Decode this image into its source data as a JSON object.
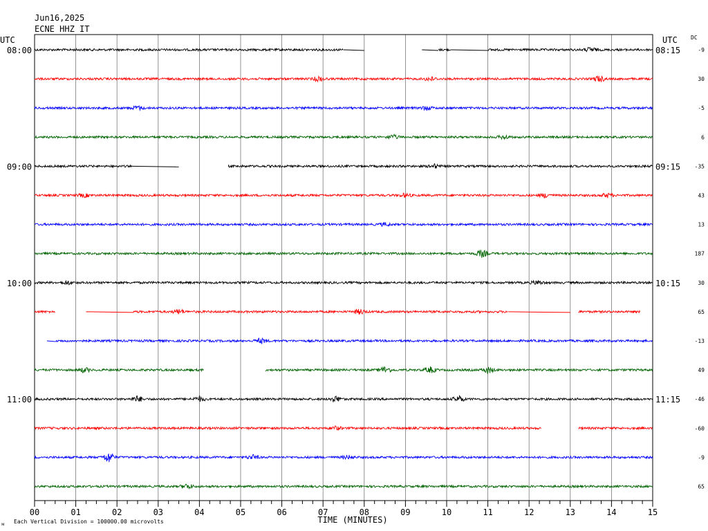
{
  "header": {
    "date": "Jun16,2025",
    "station": "ECNE HHZ IT",
    "utc_left": "UTC",
    "utc_right": "UTC",
    "dc_label": "DC"
  },
  "footer": {
    "scale_note": "Each Vertical Division = 100000.00 microvolts",
    "corner_mark": "ᴍ"
  },
  "chart_data": {
    "type": "line",
    "title": "",
    "xlabel": "TIME (MINUTES)",
    "ylabel": "",
    "x_ticks": [
      "00",
      "01",
      "02",
      "03",
      "04",
      "05",
      "06",
      "07",
      "08",
      "09",
      "10",
      "11",
      "12",
      "13",
      "14",
      "15"
    ],
    "xlim": [
      0,
      15
    ],
    "grid": "vertical lines every minute",
    "colors": [
      "#000000",
      "#ff0000",
      "#0000ff",
      "#006400"
    ],
    "left_time_labels": [
      {
        "row": 0,
        "text": "08:00"
      },
      {
        "row": 4,
        "text": "09:00"
      },
      {
        "row": 8,
        "text": "10:00"
      },
      {
        "row": 12,
        "text": "11:00"
      }
    ],
    "right_time_labels": [
      {
        "row": 0,
        "text": "08:15"
      },
      {
        "row": 4,
        "text": "09:15"
      },
      {
        "row": 8,
        "text": "10:15"
      },
      {
        "row": 12,
        "text": "11:15"
      }
    ],
    "traces": [
      {
        "dc": "-9",
        "segments": [
          [
            0,
            7.5,
            "noise"
          ],
          [
            7.5,
            8.0,
            "flat"
          ],
          [
            9.4,
            9.8,
            "flat"
          ],
          [
            9.8,
            10.1,
            "noise"
          ],
          [
            10.1,
            11.0,
            "flat"
          ],
          [
            11.0,
            15,
            "noise"
          ]
        ],
        "bursts": [
          [
            13.5,
            2
          ]
        ]
      },
      {
        "dc": "30",
        "segments": [
          [
            0,
            15,
            "noise"
          ]
        ],
        "bursts": [
          [
            6.9,
            2
          ],
          [
            9.6,
            1.6
          ],
          [
            13.7,
            2.5
          ]
        ]
      },
      {
        "dc": "-5",
        "segments": [
          [
            0,
            15,
            "noise"
          ]
        ],
        "bursts": [
          [
            2.5,
            1.6
          ],
          [
            9.5,
            1.6
          ]
        ]
      },
      {
        "dc": "6",
        "segments": [
          [
            0,
            15,
            "noise"
          ]
        ],
        "bursts": [
          [
            8.7,
            1.8
          ],
          [
            11.4,
            1.5
          ]
        ]
      },
      {
        "dc": "-35",
        "segments": [
          [
            0,
            2.35,
            "noise"
          ],
          [
            2.35,
            3.5,
            "flat"
          ],
          [
            4.7,
            15,
            "noise"
          ]
        ],
        "bursts": [
          [
            9.7,
            1.5
          ]
        ]
      },
      {
        "dc": "43",
        "segments": [
          [
            0,
            15,
            "noise"
          ]
        ],
        "bursts": [
          [
            1.2,
            1.4
          ],
          [
            9.0,
            1.5
          ],
          [
            12.4,
            1.8
          ],
          [
            13.9,
            1.6
          ]
        ]
      },
      {
        "dc": "13",
        "segments": [
          [
            0,
            15,
            "noise"
          ]
        ],
        "bursts": [
          [
            8.5,
            1.3
          ]
        ]
      },
      {
        "dc": "187",
        "segments": [
          [
            0,
            15,
            "noise"
          ]
        ],
        "bursts": [
          [
            10.85,
            3
          ]
        ]
      },
      {
        "dc": "30",
        "segments": [
          [
            0,
            15,
            "noise"
          ]
        ],
        "bursts": [
          [
            0.8,
            1.5
          ],
          [
            12.2,
            1.6
          ]
        ]
      },
      {
        "dc": "65",
        "segments": [
          [
            0,
            0.5,
            "noise"
          ],
          [
            1.25,
            2.4,
            "flat"
          ],
          [
            2.4,
            11.5,
            "noise"
          ],
          [
            11.5,
            13.0,
            "flat"
          ],
          [
            13.2,
            14.7,
            "noise"
          ]
        ],
        "bursts": [
          [
            3.5,
            2
          ],
          [
            7.9,
            2
          ]
        ]
      },
      {
        "dc": "-13",
        "segments": [
          [
            0.3,
            0.5,
            "flat"
          ],
          [
            0.5,
            15,
            "noise"
          ]
        ],
        "bursts": [
          [
            5.5,
            2
          ]
        ]
      },
      {
        "dc": "49",
        "segments": [
          [
            0,
            4.1,
            "noise"
          ],
          [
            5.6,
            15,
            "noise"
          ]
        ],
        "bursts": [
          [
            1.2,
            2
          ],
          [
            8.5,
            2.6
          ],
          [
            9.6,
            2.4
          ],
          [
            11.0,
            2.6
          ]
        ]
      },
      {
        "dc": "-46",
        "segments": [
          [
            0,
            15,
            "noise"
          ]
        ],
        "bursts": [
          [
            2.5,
            2.4
          ],
          [
            4.0,
            1.8
          ],
          [
            7.3,
            2.5
          ],
          [
            10.3,
            2.5
          ]
        ]
      },
      {
        "dc": "-60",
        "segments": [
          [
            0,
            12.3,
            "noise"
          ],
          [
            13.2,
            15,
            "noise"
          ]
        ],
        "bursts": [
          [
            7.3,
            1.5
          ]
        ]
      },
      {
        "dc": "-9",
        "segments": [
          [
            0,
            15,
            "noise"
          ]
        ],
        "bursts": [
          [
            1.8,
            4.5
          ],
          [
            5.3,
            1.8
          ],
          [
            7.6,
            1.4
          ]
        ]
      },
      {
        "dc": "65",
        "segments": [
          [
            0,
            15,
            "noise"
          ]
        ],
        "bursts": [
          [
            3.7,
            2
          ]
        ]
      }
    ]
  }
}
